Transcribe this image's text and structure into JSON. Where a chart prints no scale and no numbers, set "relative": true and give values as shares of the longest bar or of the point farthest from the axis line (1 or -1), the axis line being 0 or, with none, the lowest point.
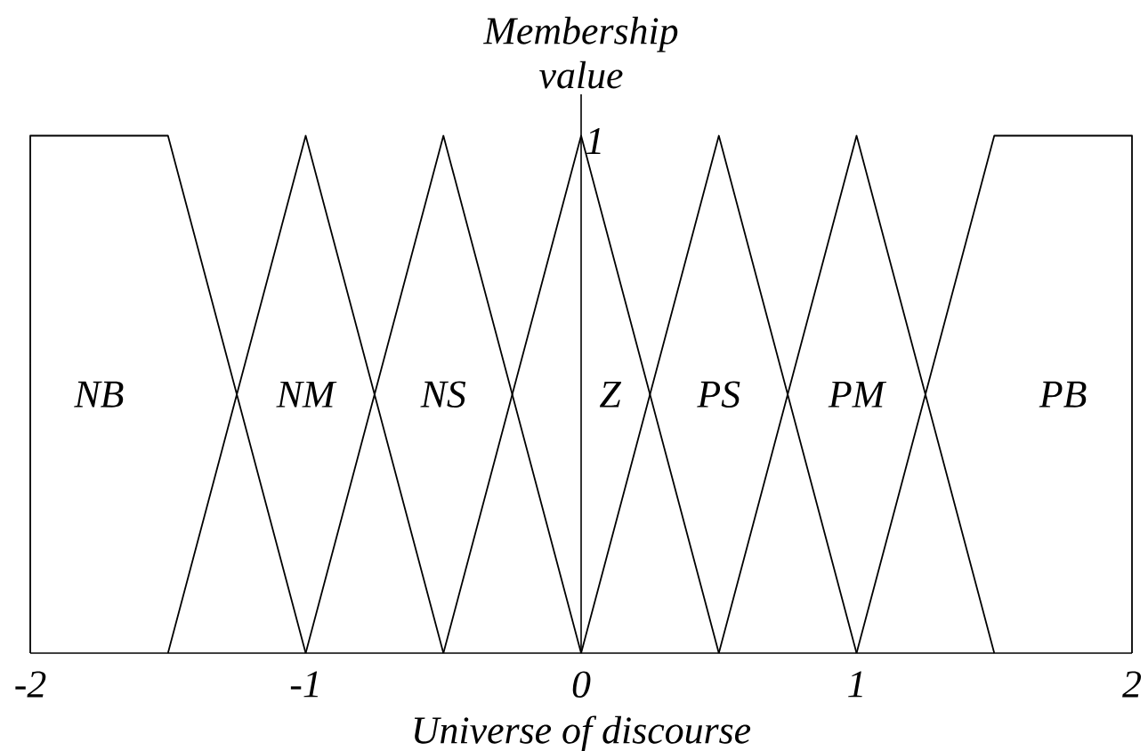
{
  "chart_data": {
    "type": "line",
    "xlabel": "Universe of discourse",
    "ylabel": "Membership value",
    "relative": true,
    "xlim": [
      -2,
      2
    ],
    "xticks": [
      -2,
      -1,
      0,
      1,
      2
    ],
    "marker": "none",
    "line_style": "solid",
    "annotations": [
      {
        "text": "1",
        "x": 0,
        "y": 1
      }
    ],
    "series": [
      {
        "name": "NB",
        "color": "#000000",
        "x": [
          -2,
          -2,
          -1.5,
          -1
        ],
        "values": [
          0,
          1,
          1,
          0
        ]
      },
      {
        "name": "NM",
        "color": "#000000",
        "x": [
          -1.5,
          -1,
          -0.5
        ],
        "values": [
          0,
          1,
          0
        ]
      },
      {
        "name": "NS",
        "color": "#000000",
        "x": [
          -1,
          -0.5,
          0
        ],
        "values": [
          0,
          1,
          0
        ]
      },
      {
        "name": "Z",
        "color": "#000000",
        "x": [
          -0.5,
          0,
          0.5
        ],
        "values": [
          0,
          1,
          0
        ]
      },
      {
        "name": "PS",
        "color": "#000000",
        "x": [
          0,
          0.5,
          1
        ],
        "values": [
          0,
          1,
          0
        ]
      },
      {
        "name": "PM",
        "color": "#000000",
        "x": [
          0.5,
          1,
          1.5
        ],
        "values": [
          0,
          1,
          0
        ]
      },
      {
        "name": "PB",
        "color": "#000000",
        "x": [
          1,
          1.5,
          2,
          2
        ],
        "values": [
          0,
          1,
          1,
          0
        ]
      }
    ]
  }
}
